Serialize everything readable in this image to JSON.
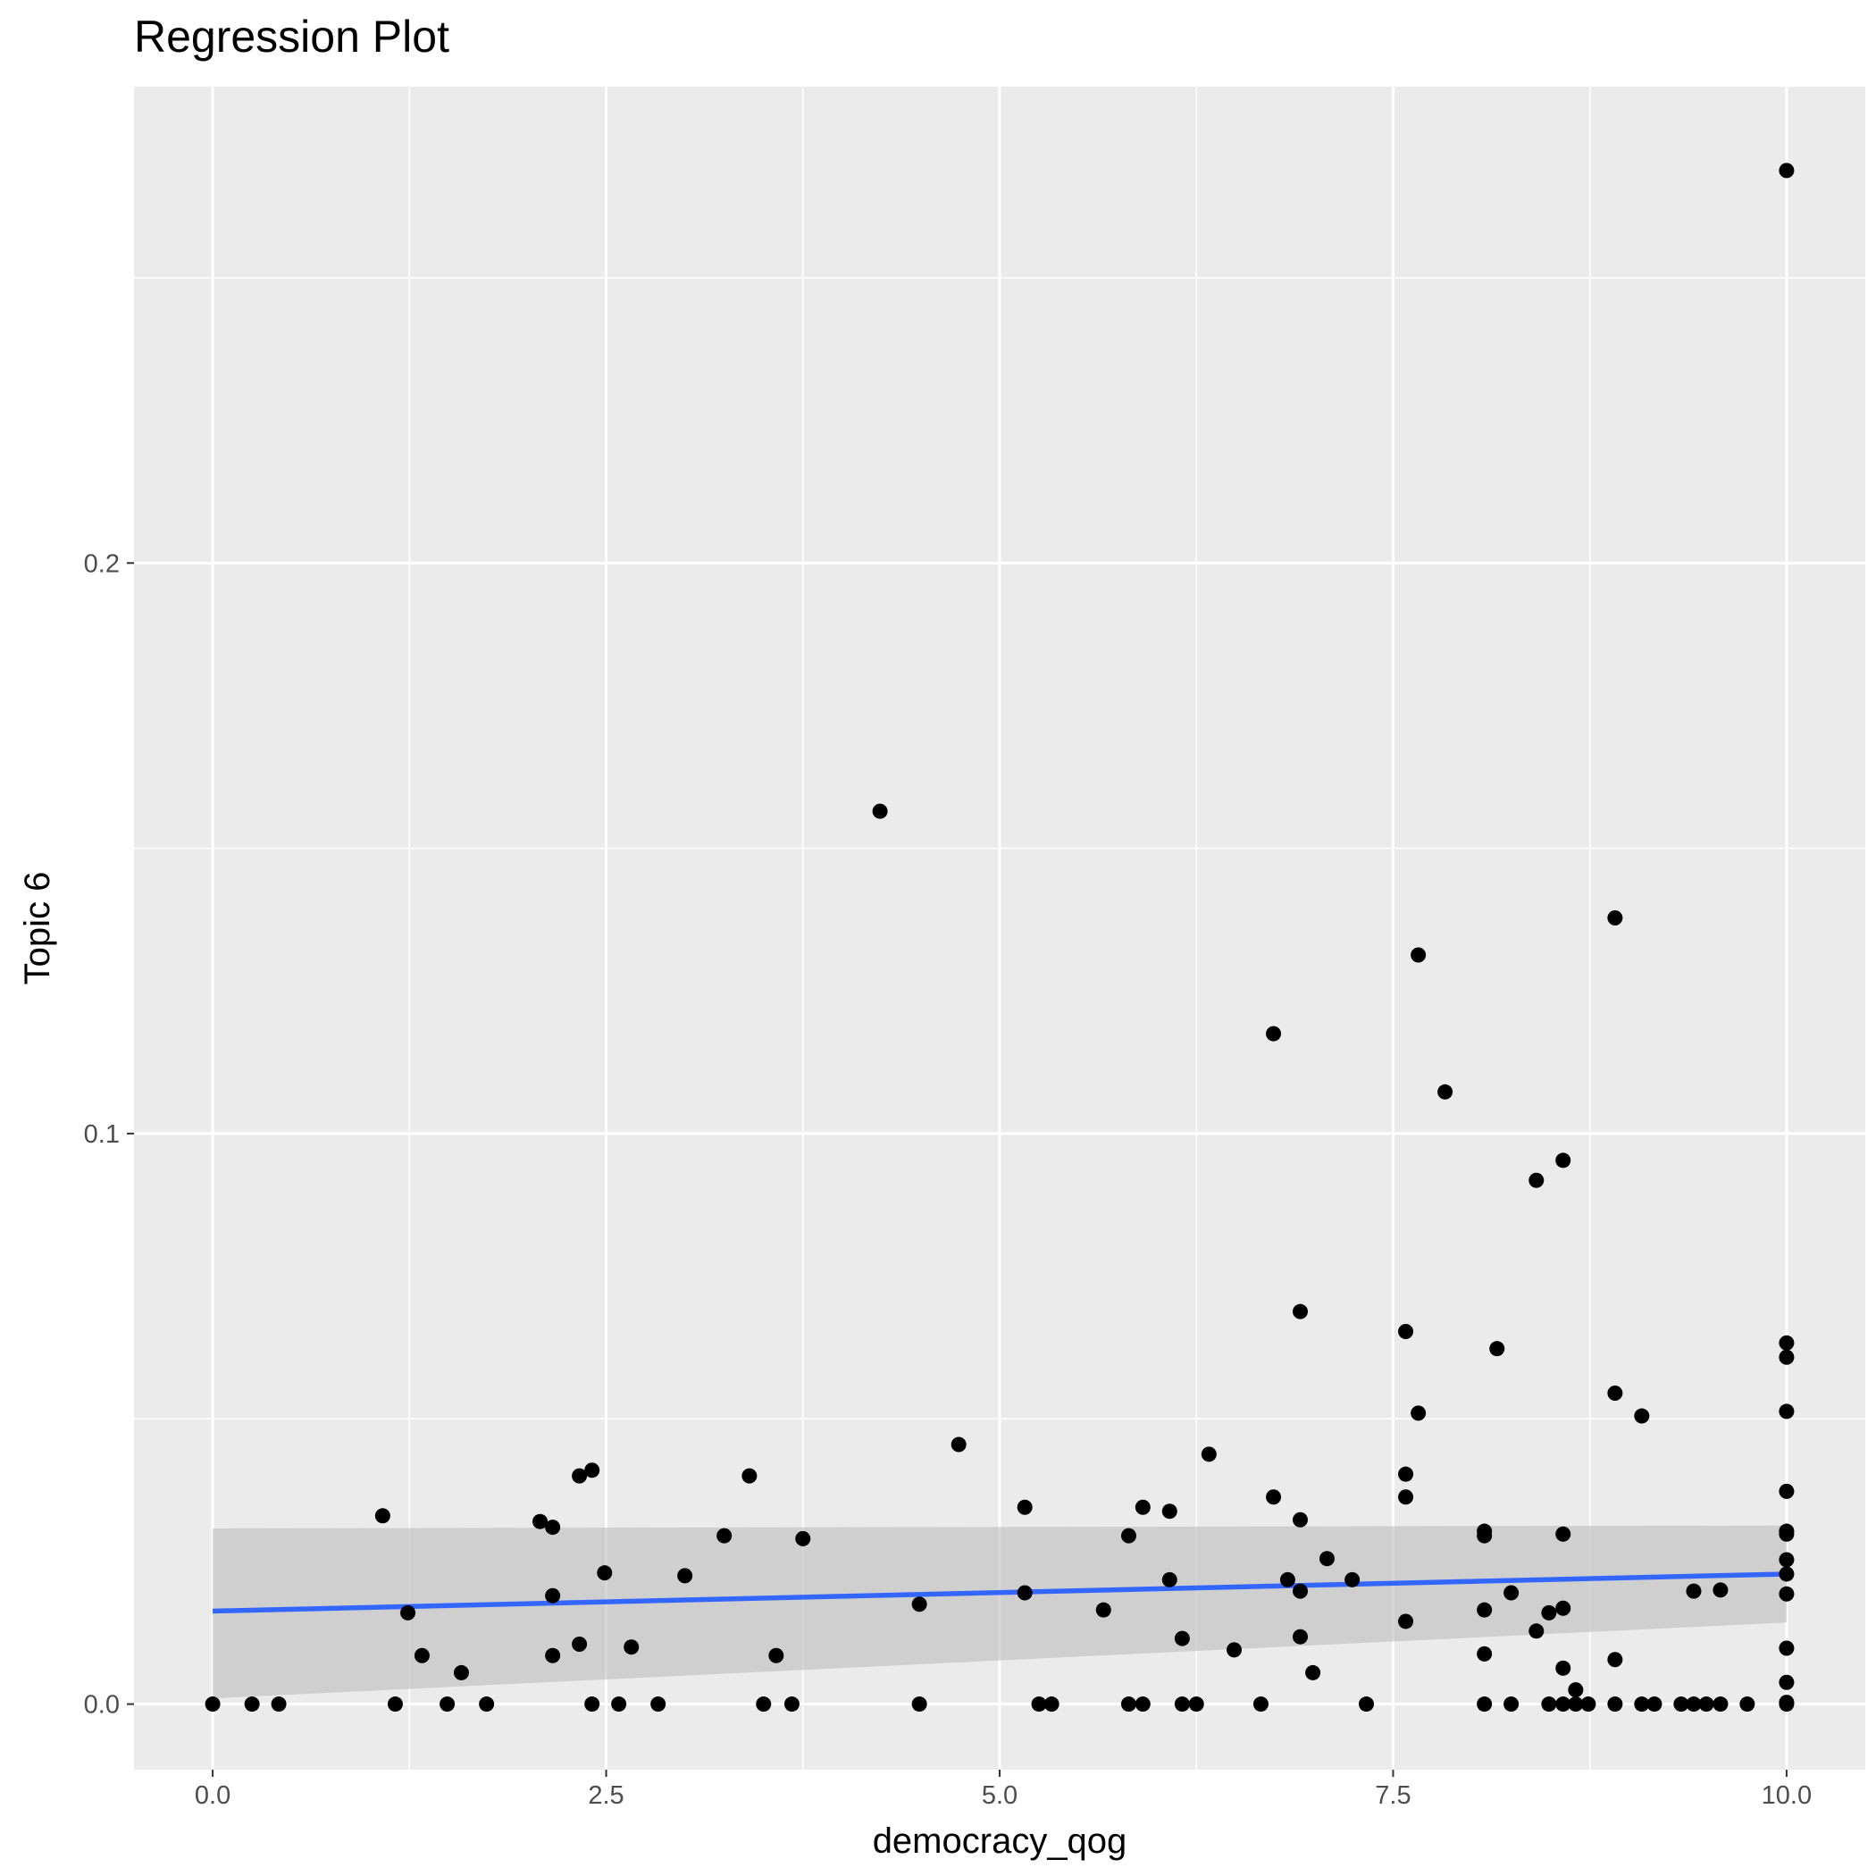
{
  "chart_data": {
    "type": "scatter",
    "title": "Regression Plot",
    "xlabel": "democracy_qog",
    "ylabel": "Topic 6",
    "xlim": [
      -0.5,
      10.5
    ],
    "ylim": [
      -0.0115,
      0.2835
    ],
    "x_ticks": [
      0.0,
      2.5,
      5.0,
      7.5,
      10.0
    ],
    "x_tick_labels": [
      "0.0",
      "2.5",
      "5.0",
      "7.5",
      "10.0"
    ],
    "y_ticks": [
      0.0,
      0.1,
      0.2
    ],
    "y_tick_labels": [
      "0.0",
      "0.1",
      "0.2"
    ],
    "grid": true,
    "colors": {
      "panel": "#ebebeb",
      "grid": "#ffffff",
      "points": "#000000",
      "line": "#3366ff",
      "band": "#bdbdbd"
    },
    "points": [
      {
        "x": 0.0,
        "y": 0.0
      },
      {
        "x": 0.25,
        "y": 0.0
      },
      {
        "x": 0.42,
        "y": 0.0
      },
      {
        "x": 1.08,
        "y": 0.033
      },
      {
        "x": 1.16,
        "y": 0.0
      },
      {
        "x": 1.24,
        "y": 0.016
      },
      {
        "x": 1.33,
        "y": 0.0085
      },
      {
        "x": 1.49,
        "y": 0.0
      },
      {
        "x": 1.58,
        "y": 0.0055
      },
      {
        "x": 1.74,
        "y": 0.0
      },
      {
        "x": 2.08,
        "y": 0.032
      },
      {
        "x": 2.16,
        "y": 0.031
      },
      {
        "x": 2.16,
        "y": 0.019
      },
      {
        "x": 2.16,
        "y": 0.0085
      },
      {
        "x": 2.33,
        "y": 0.04
      },
      {
        "x": 2.33,
        "y": 0.0105
      },
      {
        "x": 2.41,
        "y": 0.041
      },
      {
        "x": 2.41,
        "y": 0.0
      },
      {
        "x": 2.49,
        "y": 0.023
      },
      {
        "x": 2.58,
        "y": 0.0
      },
      {
        "x": 2.66,
        "y": 0.01
      },
      {
        "x": 2.83,
        "y": 0.0
      },
      {
        "x": 3.0,
        "y": 0.0225
      },
      {
        "x": 3.25,
        "y": 0.0295
      },
      {
        "x": 3.41,
        "y": 0.04
      },
      {
        "x": 3.5,
        "y": 0.0
      },
      {
        "x": 3.58,
        "y": 0.0085
      },
      {
        "x": 3.68,
        "y": 0.0
      },
      {
        "x": 3.75,
        "y": 0.029
      },
      {
        "x": 4.24,
        "y": 0.1565
      },
      {
        "x": 4.49,
        "y": 0.0175
      },
      {
        "x": 4.49,
        "y": 0.0
      },
      {
        "x": 4.74,
        "y": 0.0455
      },
      {
        "x": 5.16,
        "y": 0.0345
      },
      {
        "x": 5.16,
        "y": 0.0195
      },
      {
        "x": 5.25,
        "y": 0.0
      },
      {
        "x": 5.33,
        "y": 0.0
      },
      {
        "x": 5.66,
        "y": 0.0165
      },
      {
        "x": 5.82,
        "y": 0.0295
      },
      {
        "x": 5.82,
        "y": 0.0
      },
      {
        "x": 5.91,
        "y": 0.0345
      },
      {
        "x": 5.91,
        "y": 0.0
      },
      {
        "x": 6.08,
        "y": 0.0338
      },
      {
        "x": 6.08,
        "y": 0.0218
      },
      {
        "x": 6.16,
        "y": 0.0115
      },
      {
        "x": 6.16,
        "y": 0.0
      },
      {
        "x": 6.25,
        "y": 0.0
      },
      {
        "x": 6.33,
        "y": 0.0438
      },
      {
        "x": 6.49,
        "y": 0.0095
      },
      {
        "x": 6.66,
        "y": 0.0
      },
      {
        "x": 6.74,
        "y": 0.1175
      },
      {
        "x": 6.74,
        "y": 0.0363
      },
      {
        "x": 6.83,
        "y": 0.0218
      },
      {
        "x": 6.91,
        "y": 0.0688
      },
      {
        "x": 6.91,
        "y": 0.0323
      },
      {
        "x": 6.91,
        "y": 0.0198
      },
      {
        "x": 6.91,
        "y": 0.0118
      },
      {
        "x": 6.99,
        "y": 0.0055
      },
      {
        "x": 7.08,
        "y": 0.0255
      },
      {
        "x": 7.24,
        "y": 0.0218
      },
      {
        "x": 7.33,
        "y": 0.0
      },
      {
        "x": 7.58,
        "y": 0.0653
      },
      {
        "x": 7.58,
        "y": 0.0403
      },
      {
        "x": 7.58,
        "y": 0.0363
      },
      {
        "x": 7.58,
        "y": 0.0145
      },
      {
        "x": 7.66,
        "y": 0.1313
      },
      {
        "x": 7.66,
        "y": 0.051
      },
      {
        "x": 7.83,
        "y": 0.1073
      },
      {
        "x": 8.08,
        "y": 0.0303
      },
      {
        "x": 8.08,
        "y": 0.0295
      },
      {
        "x": 8.08,
        "y": 0.0165
      },
      {
        "x": 8.08,
        "y": 0.0088
      },
      {
        "x": 8.08,
        "y": 0.0
      },
      {
        "x": 8.16,
        "y": 0.0623
      },
      {
        "x": 8.25,
        "y": 0.0195
      },
      {
        "x": 8.25,
        "y": 0.0
      },
      {
        "x": 8.41,
        "y": 0.0918
      },
      {
        "x": 8.41,
        "y": 0.0128
      },
      {
        "x": 8.49,
        "y": 0.016
      },
      {
        "x": 8.49,
        "y": 0.0
      },
      {
        "x": 8.58,
        "y": 0.0953
      },
      {
        "x": 8.58,
        "y": 0.0298
      },
      {
        "x": 8.58,
        "y": 0.0168
      },
      {
        "x": 8.58,
        "y": 0.0063
      },
      {
        "x": 8.58,
        "y": 0.0
      },
      {
        "x": 8.66,
        "y": 0.0025
      },
      {
        "x": 8.66,
        "y": 0.0
      },
      {
        "x": 8.74,
        "y": 0.0
      },
      {
        "x": 8.91,
        "y": 0.1378
      },
      {
        "x": 8.91,
        "y": 0.0545
      },
      {
        "x": 8.91,
        "y": 0.0078
      },
      {
        "x": 8.91,
        "y": 0.0
      },
      {
        "x": 9.08,
        "y": 0.0505
      },
      {
        "x": 9.08,
        "y": 0.0
      },
      {
        "x": 9.16,
        "y": 0.0
      },
      {
        "x": 9.33,
        "y": 0.0
      },
      {
        "x": 9.41,
        "y": 0.0198
      },
      {
        "x": 9.41,
        "y": 0.0
      },
      {
        "x": 9.49,
        "y": 0.0
      },
      {
        "x": 9.58,
        "y": 0.02
      },
      {
        "x": 9.58,
        "y": 0.0
      },
      {
        "x": 9.75,
        "y": 0.0
      },
      {
        "x": 10.0,
        "y": 0.2688
      },
      {
        "x": 10.0,
        "y": 0.0633
      },
      {
        "x": 10.0,
        "y": 0.0608
      },
      {
        "x": 10.0,
        "y": 0.0513
      },
      {
        "x": 10.0,
        "y": 0.0373
      },
      {
        "x": 10.0,
        "y": 0.0303
      },
      {
        "x": 10.0,
        "y": 0.0298
      },
      {
        "x": 10.0,
        "y": 0.0253
      },
      {
        "x": 10.0,
        "y": 0.0228
      },
      {
        "x": 10.0,
        "y": 0.0193
      },
      {
        "x": 10.0,
        "y": 0.0098
      },
      {
        "x": 10.0,
        "y": 0.0038
      },
      {
        "x": 10.0,
        "y": 0.0003
      },
      {
        "x": 10.0,
        "y": 0.0
      }
    ],
    "regression": {
      "x": [
        0.0,
        10.0
      ],
      "fit": [
        0.0163,
        0.0228
      ],
      "band_lower": [
        0.001,
        0.0143
      ],
      "band_upper": [
        0.0308,
        0.0313
      ]
    }
  }
}
